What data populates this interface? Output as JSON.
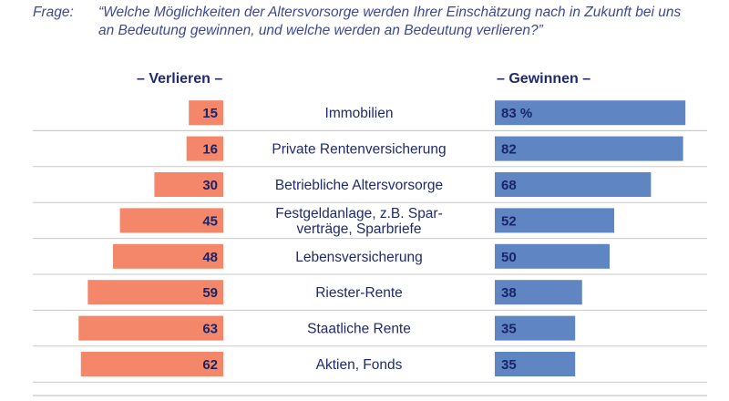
{
  "question": {
    "label": "Frage:",
    "text": "“Welche Möglichkeiten der Altersvorsorge werden Ihrer Einschätzung nach in Zukunft bei uns an Bedeutung gewinnen, und welche werden an Bedeutung verlieren?”"
  },
  "colors": {
    "lose": "#f4876a",
    "gain": "#5f86c3",
    "rule": "#c9c9c9"
  },
  "chart_data": {
    "type": "bar",
    "orientation": "horizontal-diverging",
    "unit": "%",
    "categories": [
      "Immobilien",
      "Private Rentenversicherung",
      "Betriebliche Altersvorsorge",
      "Festgeldanlage, z.B. Spar-\nverträge, Sparbriefe",
      "Lebensversicherung",
      "Riester-Rente",
      "Staatliche Rente",
      "Aktien, Fonds"
    ],
    "series": [
      {
        "name": "– Verlieren –",
        "values": [
          15,
          16,
          30,
          45,
          48,
          59,
          63,
          62
        ]
      },
      {
        "name": "– Gewinnen –",
        "values": [
          83,
          82,
          68,
          52,
          50,
          38,
          35,
          35
        ]
      }
    ],
    "value_labels_gain": [
      "83 %",
      "82",
      "68",
      "52",
      "50",
      "38",
      "35",
      "35"
    ]
  }
}
